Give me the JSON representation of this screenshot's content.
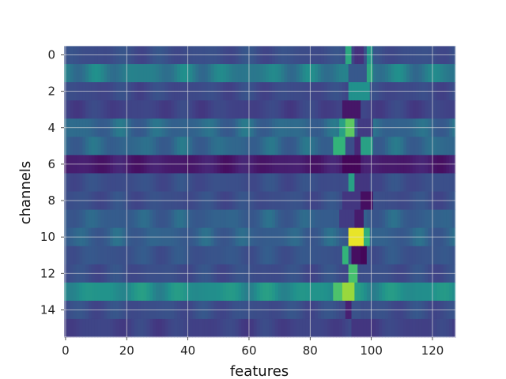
{
  "chart_data": {
    "type": "heatmap",
    "title": "",
    "xlabel": "features",
    "ylabel": "channels",
    "n_rows": 16,
    "n_cols": 128,
    "xlim": [
      0,
      127
    ],
    "ylim": [
      15,
      0
    ],
    "x_ticks": [
      0,
      20,
      40,
      60,
      80,
      100,
      120
    ],
    "y_ticks": [
      0,
      2,
      4,
      6,
      8,
      10,
      12,
      14
    ],
    "colormap": "viridis",
    "value_range": [
      0,
      1
    ],
    "grid": true,
    "grid_color": "#dddddd",
    "row_base_values": [
      0.3,
      0.45,
      0.28,
      0.25,
      0.4,
      0.4,
      0.1,
      0.3,
      0.3,
      0.38,
      0.38,
      0.33,
      0.3,
      0.5,
      0.3,
      0.25
    ],
    "hotspots": [
      {
        "row": 0,
        "start": 92,
        "end": 94,
        "value": 0.58
      },
      {
        "row": 0,
        "start": 95,
        "end": 98,
        "value": 0.18
      },
      {
        "row": 0,
        "start": 99,
        "end": 101,
        "value": 0.52
      },
      {
        "row": 1,
        "start": 93,
        "end": 99,
        "value": 0.35
      },
      {
        "row": 1,
        "start": 99,
        "end": 101,
        "value": 0.58
      },
      {
        "row": 2,
        "start": 93,
        "end": 100,
        "value": 0.5
      },
      {
        "row": 3,
        "start": 91,
        "end": 97,
        "value": 0.08
      },
      {
        "row": 4,
        "start": 90,
        "end": 92,
        "value": 0.55
      },
      {
        "row": 4,
        "start": 92,
        "end": 95,
        "value": 0.75
      },
      {
        "row": 4,
        "start": 96,
        "end": 101,
        "value": 0.22
      },
      {
        "row": 5,
        "start": 88,
        "end": 92,
        "value": 0.62
      },
      {
        "row": 5,
        "start": 92,
        "end": 95,
        "value": 0.3
      },
      {
        "row": 5,
        "start": 95,
        "end": 97,
        "value": 0.15
      },
      {
        "row": 5,
        "start": 97,
        "end": 101,
        "value": 0.55
      },
      {
        "row": 6,
        "start": 91,
        "end": 97,
        "value": 0.02
      },
      {
        "row": 7,
        "start": 93,
        "end": 95,
        "value": 0.55
      },
      {
        "row": 7,
        "start": 95,
        "end": 100,
        "value": 0.2
      },
      {
        "row": 8,
        "start": 91,
        "end": 97,
        "value": 0.2
      },
      {
        "row": 8,
        "start": 97,
        "end": 101,
        "value": 0.05
      },
      {
        "row": 9,
        "start": 90,
        "end": 95,
        "value": 0.22
      },
      {
        "row": 9,
        "start": 95,
        "end": 98,
        "value": 0.1
      },
      {
        "row": 10,
        "start": 93,
        "end": 98,
        "value": 0.97
      },
      {
        "row": 10,
        "start": 98,
        "end": 100,
        "value": 0.6
      },
      {
        "row": 11,
        "start": 91,
        "end": 93,
        "value": 0.62
      },
      {
        "row": 11,
        "start": 94,
        "end": 97,
        "value": 0.05
      },
      {
        "row": 11,
        "start": 97,
        "end": 99,
        "value": 0.02
      },
      {
        "row": 12,
        "start": 93,
        "end": 96,
        "value": 0.68
      },
      {
        "row": 13,
        "start": 88,
        "end": 91,
        "value": 0.7
      },
      {
        "row": 13,
        "start": 91,
        "end": 95,
        "value": 0.85
      },
      {
        "row": 14,
        "start": 92,
        "end": 94,
        "value": 0.12
      },
      {
        "row": 14,
        "start": 94,
        "end": 97,
        "value": 0.32
      },
      {
        "row": 15,
        "start": 94,
        "end": 101,
        "value": 0.2
      }
    ]
  }
}
